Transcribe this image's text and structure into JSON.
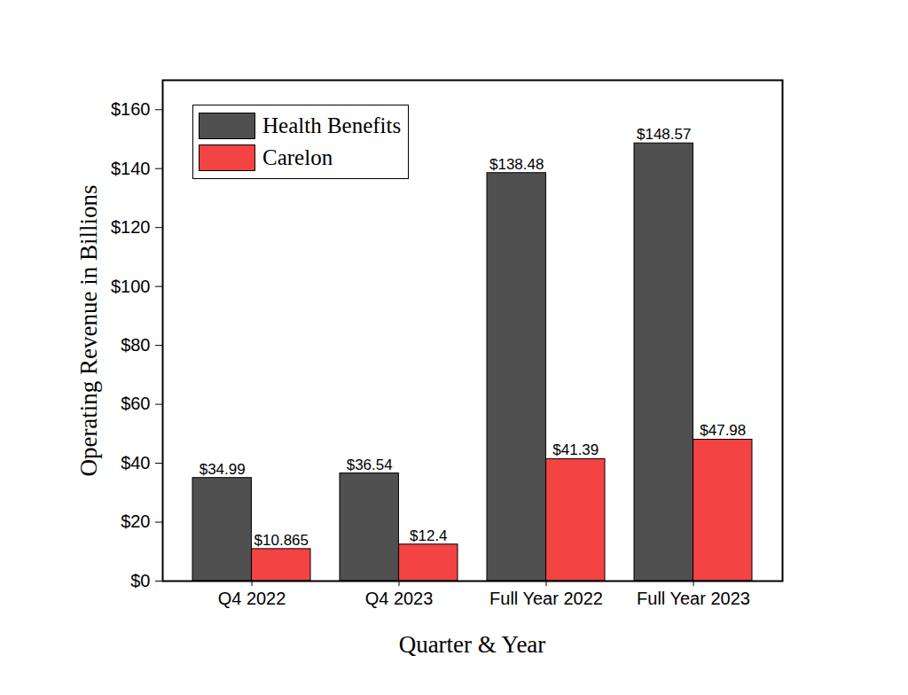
{
  "chart_data": {
    "type": "bar",
    "x_label": "Quarter & Year",
    "y_label": "Operating Revenue in Billions",
    "categories": [
      "Q4 2022",
      "Q4 2023",
      "Full Year 2022",
      "Full Year 2023"
    ],
    "series": [
      {
        "name": "Health Benefits",
        "color": "#505050",
        "values": [
          34.99,
          36.54,
          138.48,
          148.57
        ],
        "value_labels": [
          "$34.99",
          "$36.54",
          "$138.48",
          "$148.57"
        ]
      },
      {
        "name": "Carelon",
        "color": "#f44343",
        "values": [
          10.865,
          12.4,
          41.39,
          47.98
        ],
        "value_labels": [
          "$10.865",
          "$12.4",
          "$41.39",
          "$47.98"
        ]
      }
    ],
    "ylim": [
      0,
      170
    ],
    "yticks": [
      {
        "value": 0,
        "label": "$0"
      },
      {
        "value": 20,
        "label": "$20"
      },
      {
        "value": 40,
        "label": "$40"
      },
      {
        "value": 60,
        "label": "$60"
      },
      {
        "value": 80,
        "label": "$80"
      },
      {
        "value": 100,
        "label": "$100"
      },
      {
        "value": 120,
        "label": "$120"
      },
      {
        "value": 140,
        "label": "$140"
      },
      {
        "value": 160,
        "label": "$160"
      }
    ],
    "grid": false,
    "legend": "upper left",
    "data_labels": true
  }
}
